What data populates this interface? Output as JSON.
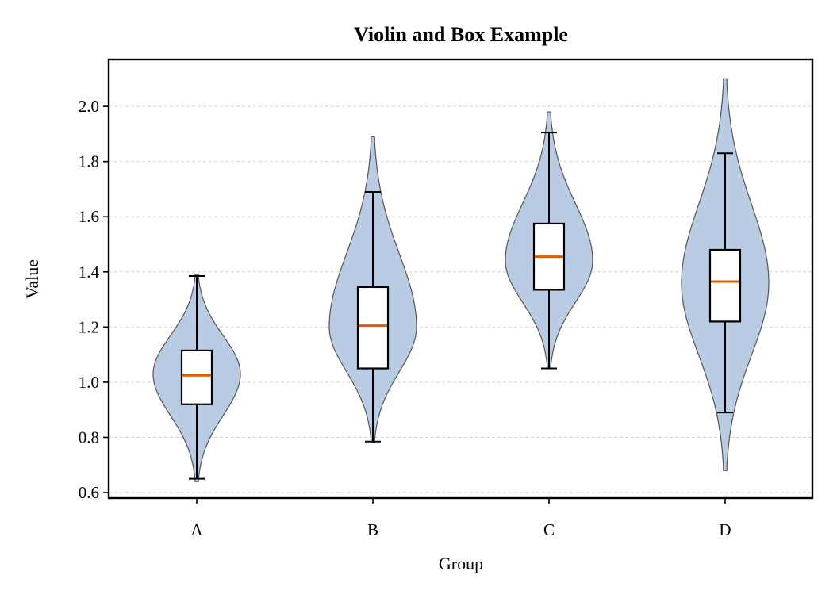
{
  "chart_data": {
    "type": "violin",
    "title": "Violin and Box Example",
    "xlabel": "Group",
    "ylabel": "Value",
    "categories": [
      "A",
      "B",
      "C",
      "D"
    ],
    "ylim": [
      0.58,
      2.17
    ],
    "yticks": [
      "0.6",
      "0.8",
      "1.0",
      "1.2",
      "1.4",
      "1.6",
      "1.8",
      "2.0"
    ],
    "grid": "horizontal-dashed",
    "groups": [
      {
        "label": "A",
        "violin_min": 0.64,
        "violin_max": 1.39,
        "density_peak": 1.03,
        "whisker_low": 0.65,
        "q1": 0.92,
        "median": 1.025,
        "q3": 1.115,
        "whisker_high": 1.385
      },
      {
        "label": "B",
        "violin_min": 0.78,
        "violin_max": 1.89,
        "density_peak": 1.2,
        "whisker_low": 0.785,
        "q1": 1.05,
        "median": 1.205,
        "q3": 1.345,
        "whisker_high": 1.69
      },
      {
        "label": "C",
        "violin_min": 1.05,
        "violin_max": 1.98,
        "density_peak": 1.44,
        "whisker_low": 1.05,
        "q1": 1.335,
        "median": 1.455,
        "q3": 1.575,
        "whisker_high": 1.905
      },
      {
        "label": "D",
        "violin_min": 0.68,
        "violin_max": 2.1,
        "density_peak": 1.36,
        "whisker_low": 0.89,
        "q1": 1.22,
        "median": 1.365,
        "q3": 1.48,
        "whisker_high": 1.83
      }
    ],
    "colors": {
      "violin_fill": "#b3c6e0",
      "violin_edge": "#555555",
      "median": "#d95f02",
      "box_fill": "#ffffff",
      "box_edge": "#000000"
    }
  }
}
